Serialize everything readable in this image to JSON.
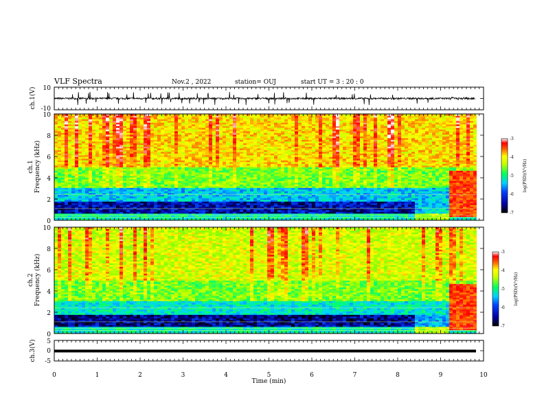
{
  "header": {
    "title": "VLF Spectra",
    "date": "Nov.2 , 2022",
    "station": "station= OUJ",
    "start_time": "start UT = 3 : 20 : 0"
  },
  "colors": {
    "spectrum_scale": [
      "#000060",
      "#0000ff",
      "#00c8ff",
      "#00ff80",
      "#c8ff00",
      "#ffff00",
      "#ff8000",
      "#ff0000",
      "#ffffff"
    ],
    "trace": "#000000"
  },
  "chart_data": [
    {
      "type": "line",
      "panel": "ch1-waveform",
      "ylabel": "ch.1(V)",
      "ylim": [
        -10,
        10
      ],
      "yticks": [
        "10",
        "-10"
      ],
      "xlim": [
        0,
        10
      ],
      "description_values": {
        "baseline_volts": 0,
        "typical_amplitude_volts": 1.5,
        "spike_amplitude_volts": 6
      }
    },
    {
      "type": "heatmap",
      "panel": "ch1-spectrogram",
      "ylabel_top": "ch.1",
      "ylabel": "Frequency (kHz)",
      "ylim": [
        0,
        10
      ],
      "yticks": [
        "0",
        "2",
        "4",
        "6",
        "8",
        "10"
      ],
      "xlim": [
        0,
        10
      ],
      "colorbar": {
        "label": "log(PSD)(V²/Hz)",
        "range": [
          -7,
          -3
        ],
        "ticks": [
          "-3",
          "-4",
          "-5",
          "-6",
          "-7"
        ]
      },
      "bands": [
        {
          "freq_khz": [
            0,
            0.6
          ],
          "log_psd": -5.5
        },
        {
          "freq_khz": [
            0.6,
            1.8
          ],
          "log_psd": -6.7
        },
        {
          "freq_khz": [
            1.8,
            3.0
          ],
          "log_psd": -5.8
        },
        {
          "freq_khz": [
            3.0,
            5.0
          ],
          "log_psd": -4.9
        },
        {
          "freq_khz": [
            5.0,
            10.0
          ],
          "log_psd": -4.2
        }
      ],
      "late_emission": {
        "time_min": [
          9.2,
          9.8
        ],
        "freq_khz": [
          0.3,
          4.6
        ],
        "log_psd": -3.6
      }
    },
    {
      "type": "heatmap",
      "panel": "ch2-spectrogram",
      "ylabel_top": "ch.2",
      "ylabel": "Frequency (kHz)",
      "ylim": [
        0,
        10
      ],
      "yticks": [
        "0",
        "2",
        "4",
        "6",
        "8",
        "10"
      ],
      "xlim": [
        0,
        10
      ],
      "colorbar": {
        "label": "log(PSD)(V²/Hz)",
        "range": [
          -7,
          -3
        ],
        "ticks": [
          "-3",
          "-4",
          "-5",
          "-6",
          "-7"
        ]
      },
      "bands": [
        {
          "freq_khz": [
            0,
            0.6
          ],
          "log_psd": -5.5
        },
        {
          "freq_khz": [
            0.6,
            1.8
          ],
          "log_psd": -6.8
        },
        {
          "freq_khz": [
            1.8,
            3.0
          ],
          "log_psd": -5.6
        },
        {
          "freq_khz": [
            3.0,
            5.0
          ],
          "log_psd": -4.9
        },
        {
          "freq_khz": [
            5.0,
            10.0
          ],
          "log_psd": -4.5
        }
      ],
      "late_emission": {
        "time_min": [
          9.2,
          9.8
        ],
        "freq_khz": [
          0.3,
          4.6
        ],
        "log_psd": -3.6
      }
    },
    {
      "type": "line",
      "panel": "ch3-waveform",
      "ylabel": "ch.3(V)",
      "ylim": [
        -5,
        5
      ],
      "yticks": [
        "5",
        "0",
        "-5"
      ],
      "xlim": [
        0,
        10
      ],
      "xticks": [
        "0",
        "1",
        "2",
        "3",
        "4",
        "5",
        "6",
        "7",
        "8",
        "9",
        "10"
      ],
      "xlabel": "Time (min)",
      "description_values": {
        "baseline_volts": 0
      }
    }
  ]
}
